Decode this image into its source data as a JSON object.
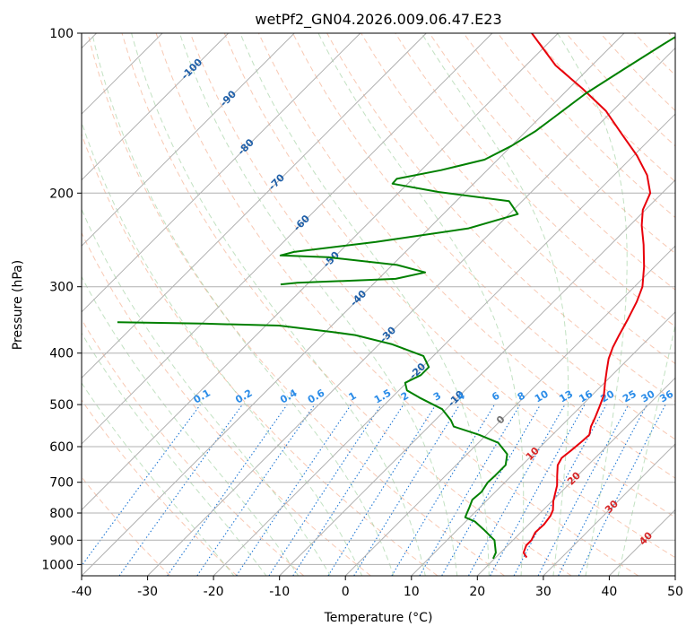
{
  "chart_data": {
    "type": "line",
    "title": "wetPf2_GN04.2026.009.06.47.E23",
    "xlabel": "Temperature (°C)",
    "ylabel": "Pressure (hPa)",
    "xlim": [
      -40,
      50
    ],
    "ylim": [
      1050,
      100
    ],
    "y_scale": "log",
    "grid": true,
    "x_ticks": [
      "-40",
      "-30",
      "-20",
      "-10",
      "0",
      "10",
      "20",
      "30",
      "40",
      "50"
    ],
    "y_ticks": [
      "100",
      "200",
      "300",
      "400",
      "500",
      "600",
      "700",
      "800",
      "900",
      "1000"
    ],
    "temperature_color": "#e8000b",
    "dewpoint_color": "#008000",
    "isotherm_labels": [
      {
        "text": "-100",
        "T": -100,
        "p": 117
      },
      {
        "text": "-90",
        "T": -90,
        "p": 133
      },
      {
        "text": "-80",
        "T": -80,
        "p": 164
      },
      {
        "text": "-70",
        "T": -70,
        "p": 191
      },
      {
        "text": "-60",
        "T": -60,
        "p": 228
      },
      {
        "text": "-50",
        "T": -50,
        "p": 267
      },
      {
        "text": "-40",
        "T": -40,
        "p": 316
      },
      {
        "text": "-30",
        "T": -30,
        "p": 370
      },
      {
        "text": "-20",
        "T": -20,
        "p": 433
      },
      {
        "text": "-10",
        "T": -10,
        "p": 488
      },
      {
        "text": "0",
        "T": 0,
        "p": 535
      },
      {
        "text": "10",
        "T": 10,
        "p": 620
      },
      {
        "text": "20",
        "T": 20,
        "p": 690
      },
      {
        "text": "30",
        "T": 30,
        "p": 780
      },
      {
        "text": "40",
        "T": 40,
        "p": 895
      }
    ],
    "mixing_ratio_labels": [
      "0.1",
      "0.2",
      "0.4",
      "0.6",
      "1",
      "1.5",
      "2",
      "3",
      "4",
      "6",
      "8",
      "10",
      "13",
      "16",
      "20",
      "25",
      "30",
      "36"
    ],
    "series": [
      {
        "id": "temperature",
        "points": [
          [
            24.7,
            970
          ],
          [
            23.5,
            950
          ],
          [
            22.8,
            920
          ],
          [
            22.8,
            900
          ],
          [
            22.2,
            870
          ],
          [
            22.3,
            840
          ],
          [
            22.0,
            810
          ],
          [
            21.5,
            790
          ],
          [
            20.2,
            760
          ],
          [
            18.4,
            710
          ],
          [
            16.9,
            680
          ],
          [
            15.4,
            650
          ],
          [
            14.9,
            630
          ],
          [
            15.2,
            610
          ],
          [
            15.5,
            585
          ],
          [
            15.6,
            570
          ],
          [
            14.6,
            550
          ],
          [
            13.9,
            530
          ],
          [
            12.9,
            505
          ],
          [
            11.8,
            480
          ],
          [
            10.1,
            455
          ],
          [
            8.4,
            430
          ],
          [
            7.0,
            410
          ],
          [
            5.9,
            390
          ],
          [
            5.0,
            370
          ],
          [
            3.9,
            345
          ],
          [
            2.6,
            320
          ],
          [
            1.2,
            300
          ],
          [
            -1.6,
            275
          ],
          [
            -5.0,
            250
          ],
          [
            -8.2,
            230
          ],
          [
            -10.4,
            215
          ],
          [
            -11.8,
            200
          ],
          [
            -15.0,
            185
          ],
          [
            -19.5,
            170
          ],
          [
            -25.0,
            155
          ],
          [
            -31.0,
            140
          ],
          [
            -38.0,
            127
          ],
          [
            -45.5,
            115
          ],
          [
            -54.0,
            100
          ]
        ]
      },
      {
        "id": "dewpoint",
        "points": [
          [
            19.8,
            975
          ],
          [
            19.3,
            950
          ],
          [
            17.2,
            900
          ],
          [
            14.0,
            860
          ],
          [
            11.4,
            830
          ],
          [
            9.3,
            815
          ],
          [
            8.9,
            800
          ],
          [
            8.4,
            780
          ],
          [
            7.7,
            755
          ],
          [
            7.9,
            730
          ],
          [
            7.4,
            700
          ],
          [
            7.5,
            680
          ],
          [
            7.5,
            650
          ],
          [
            6.1,
            620
          ],
          [
            3.0,
            590
          ],
          [
            -1.1,
            570
          ],
          [
            -6.2,
            550
          ],
          [
            -7.6,
            535
          ],
          [
            -10.6,
            510
          ],
          [
            -15.8,
            485
          ],
          [
            -18.8,
            470
          ],
          [
            -20.2,
            455
          ],
          [
            -19.0,
            440
          ],
          [
            -19.0,
            425
          ],
          [
            -21.5,
            405
          ],
          [
            -28.0,
            385
          ],
          [
            -35.0,
            370
          ],
          [
            -39.0,
            365
          ],
          [
            -48.0,
            355
          ],
          [
            -60.0,
            352
          ],
          [
            -73.0,
            350
          ]
        ]
      },
      {
        "id": "dewpoint-upper",
        "points": [
          [
            -54.0,
            297
          ],
          [
            -51.7,
            295
          ],
          [
            -37.4,
            290
          ],
          [
            -33.9,
            282
          ],
          [
            -39.3,
            273
          ],
          [
            -51.0,
            264
          ],
          [
            -58.4,
            262
          ],
          [
            -56.9,
            258
          ],
          [
            -46.0,
            247
          ],
          [
            -34.0,
            233
          ],
          [
            -28.7,
            219
          ],
          [
            -32.0,
            207
          ],
          [
            -44.0,
            199
          ],
          [
            -52.3,
            192
          ],
          [
            -52.4,
            188
          ],
          [
            -47.0,
            181
          ],
          [
            -42.0,
            173
          ],
          [
            -40.0,
            163
          ],
          [
            -38.6,
            153
          ],
          [
            -37.8,
            143
          ],
          [
            -36.7,
            130
          ],
          [
            -34.6,
            117
          ],
          [
            -32.4,
            105
          ],
          [
            -31.3,
            100
          ]
        ]
      }
    ]
  }
}
